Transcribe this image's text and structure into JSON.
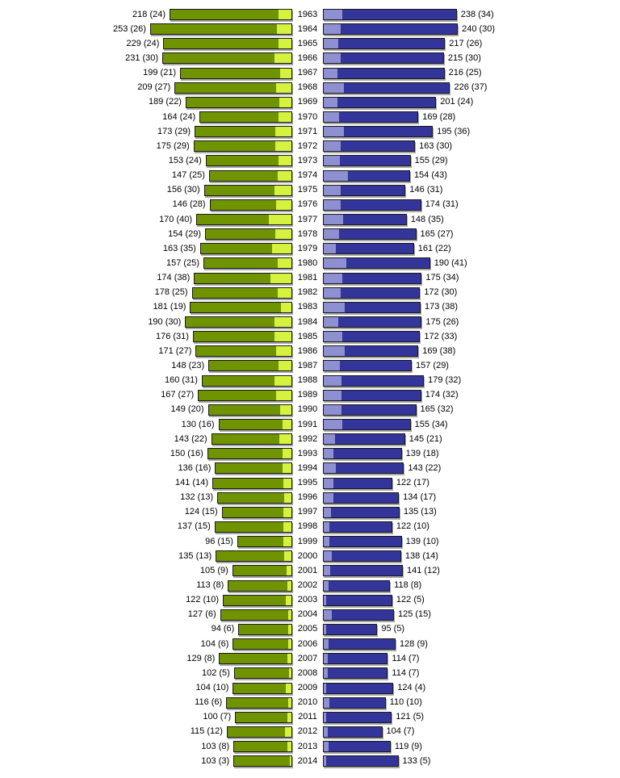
{
  "chart_data": {
    "type": "bar",
    "variant": "diverging-horizontal-center-axis",
    "title": "",
    "legend": "none",
    "grid": false,
    "center_axis_label": "year",
    "label_format": "{total} ({sub})",
    "categories": [
      1963,
      1964,
      1965,
      1966,
      1967,
      1968,
      1969,
      1970,
      1971,
      1972,
      1973,
      1974,
      1975,
      1976,
      1977,
      1978,
      1979,
      1980,
      1981,
      1982,
      1983,
      1984,
      1985,
      1986,
      1987,
      1988,
      1989,
      1990,
      1991,
      1992,
      1993,
      1994,
      1995,
      1996,
      1997,
      1998,
      1999,
      2000,
      2001,
      2002,
      2003,
      2004,
      2005,
      2006,
      2007,
      2008,
      2009,
      2010,
      2011,
      2012,
      2013,
      2014
    ],
    "series": [
      {
        "name": "left_total",
        "side": "left",
        "color": "#6f9400",
        "values": [
          218,
          253,
          229,
          231,
          199,
          209,
          189,
          164,
          173,
          175,
          153,
          147,
          156,
          146,
          170,
          154,
          163,
          157,
          174,
          178,
          181,
          190,
          176,
          171,
          148,
          160,
          167,
          149,
          130,
          143,
          150,
          136,
          141,
          132,
          124,
          137,
          96,
          135,
          105,
          113,
          122,
          127,
          94,
          104,
          129,
          102,
          104,
          116,
          100,
          115,
          103,
          103
        ]
      },
      {
        "name": "left_sub",
        "side": "left-inner-highlight",
        "color": "#d4f23e",
        "values": [
          24,
          26,
          24,
          30,
          21,
          27,
          22,
          24,
          29,
          29,
          24,
          25,
          30,
          28,
          40,
          29,
          35,
          25,
          38,
          25,
          19,
          30,
          31,
          27,
          23,
          31,
          27,
          20,
          16,
          22,
          16,
          16,
          14,
          13,
          15,
          15,
          15,
          13,
          9,
          8,
          10,
          6,
          6,
          6,
          8,
          5,
          10,
          6,
          7,
          12,
          8,
          3
        ]
      },
      {
        "name": "right_total",
        "side": "right",
        "color": "#34359b",
        "values": [
          238,
          240,
          217,
          215,
          216,
          226,
          201,
          169,
          195,
          163,
          155,
          154,
          146,
          174,
          148,
          165,
          161,
          190,
          175,
          172,
          173,
          175,
          172,
          169,
          157,
          179,
          174,
          165,
          155,
          145,
          139,
          143,
          122,
          134,
          135,
          122,
          139,
          138,
          141,
          118,
          122,
          125,
          95,
          128,
          114,
          114,
          124,
          110,
          121,
          104,
          119,
          133
        ]
      },
      {
        "name": "right_sub",
        "side": "right-inner-highlight",
        "color": "#8e90d2",
        "values": [
          34,
          30,
          26,
          30,
          25,
          37,
          24,
          28,
          36,
          30,
          29,
          43,
          31,
          31,
          35,
          27,
          22,
          41,
          34,
          30,
          38,
          26,
          33,
          38,
          29,
          32,
          32,
          32,
          34,
          21,
          18,
          22,
          17,
          17,
          13,
          10,
          10,
          14,
          12,
          8,
          5,
          15,
          5,
          9,
          7,
          7,
          4,
          10,
          5,
          7,
          9,
          5
        ]
      }
    ],
    "colors": {
      "left_bar": "#6f9400",
      "left_highlight": "#d4f23e",
      "right_bar": "#34359b",
      "right_highlight": "#8e90d2",
      "text": "#000000",
      "background": "#ffffff"
    }
  }
}
